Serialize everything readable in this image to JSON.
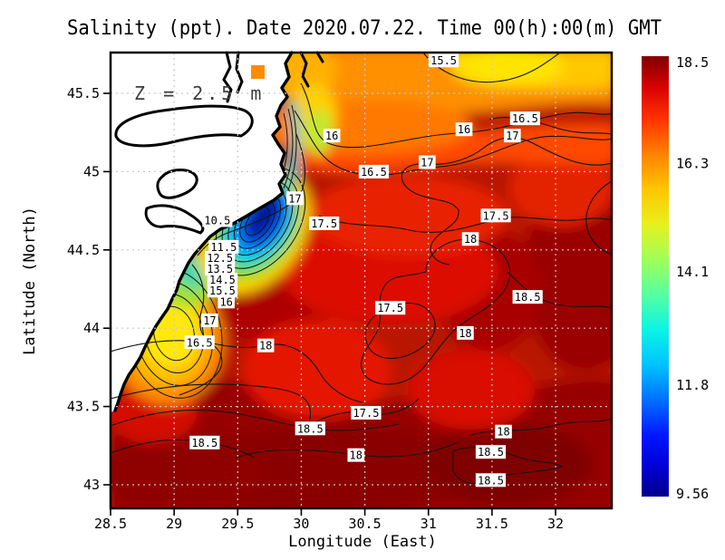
{
  "title": "Salinity (ppt). Date 2020.07.22. Time 00(h):00(m) GMT",
  "annotation": "Z = 2.5 m",
  "axes": {
    "x": {
      "label": "Longitude (East)",
      "ticks": [
        {
          "v": 28.5,
          "label": "28.5"
        },
        {
          "v": 29,
          "label": "29"
        },
        {
          "v": 29.5,
          "label": "29.5"
        },
        {
          "v": 30,
          "label": "30"
        },
        {
          "v": 30.5,
          "label": "30.5"
        },
        {
          "v": 31,
          "label": "31"
        },
        {
          "v": 31.5,
          "label": "31.5"
        },
        {
          "v": 32,
          "label": "32"
        }
      ]
    },
    "y": {
      "label": "Latitude (North)",
      "ticks": [
        {
          "v": 45.5,
          "label": "45.5"
        },
        {
          "v": 45,
          "label": "45"
        },
        {
          "v": 44.5,
          "label": "44.5"
        },
        {
          "v": 44,
          "label": "44"
        },
        {
          "v": 43.5,
          "label": "43.5"
        },
        {
          "v": 43,
          "label": "43"
        }
      ]
    }
  },
  "colorbar": {
    "min": 9.56,
    "max": 18.5,
    "ticks": [
      {
        "v": 18.5,
        "label": "18.5"
      },
      {
        "v": 16.3,
        "label": "16.3"
      },
      {
        "v": 14.1,
        "label": "14.1"
      },
      {
        "v": 11.8,
        "label": "11.8"
      },
      {
        "v": 9.56,
        "label": "9.56"
      }
    ]
  },
  "chart_data": {
    "type": "heatmap",
    "subtype": "filled-contour-map",
    "variable": "Salinity (ppt)",
    "date": "2020.07.22",
    "time": "00(h):00(m) GMT",
    "depth_annotation": "Z = 2.5 m",
    "xlabel": "Longitude (East)",
    "ylabel": "Latitude (North)",
    "lon_range": [
      28.5,
      32.44
    ],
    "lat_range": [
      42.85,
      45.76
    ],
    "value_range": [
      9.56,
      18.5
    ],
    "colormap": "jet",
    "grid": true,
    "legend_position": "right-colorbar",
    "contour_labels": [
      {
        "v": "15.5",
        "lon": 31.12,
        "lat": 45.71
      },
      {
        "v": "16.5",
        "lon": 31.76,
        "lat": 45.34
      },
      {
        "v": "16",
        "lon": 31.28,
        "lat": 45.27
      },
      {
        "v": "17",
        "lon": 31.66,
        "lat": 45.23
      },
      {
        "v": "16",
        "lon": 30.24,
        "lat": 45.23
      },
      {
        "v": "17",
        "lon": 30.99,
        "lat": 45.06
      },
      {
        "v": "16.5",
        "lon": 30.57,
        "lat": 45.0
      },
      {
        "v": "17",
        "lon": 29.95,
        "lat": 44.83
      },
      {
        "v": "17.5",
        "lon": 30.18,
        "lat": 44.67
      },
      {
        "v": "10.5",
        "lon": 29.34,
        "lat": 44.69
      },
      {
        "v": "17.5",
        "lon": 31.53,
        "lat": 44.72
      },
      {
        "v": "18",
        "lon": 31.33,
        "lat": 44.57
      },
      {
        "v": "11.5",
        "lon": 29.39,
        "lat": 44.52
      },
      {
        "v": "12.5",
        "lon": 29.36,
        "lat": 44.45
      },
      {
        "v": "13.5",
        "lon": 29.36,
        "lat": 44.38
      },
      {
        "v": "14.5",
        "lon": 29.38,
        "lat": 44.31
      },
      {
        "v": "15.5",
        "lon": 29.38,
        "lat": 44.24
      },
      {
        "v": "16",
        "lon": 29.41,
        "lat": 44.17
      },
      {
        "v": "18.5",
        "lon": 31.78,
        "lat": 44.2
      },
      {
        "v": "17",
        "lon": 29.28,
        "lat": 44.05
      },
      {
        "v": "17.5",
        "lon": 30.7,
        "lat": 44.13
      },
      {
        "v": "16.5",
        "lon": 29.2,
        "lat": 43.91
      },
      {
        "v": "18",
        "lon": 29.72,
        "lat": 43.89
      },
      {
        "v": "18",
        "lon": 31.29,
        "lat": 43.97
      },
      {
        "v": "18.5",
        "lon": 30.07,
        "lat": 43.36
      },
      {
        "v": "17.5",
        "lon": 30.51,
        "lat": 43.46
      },
      {
        "v": "18",
        "lon": 30.43,
        "lat": 43.19
      },
      {
        "v": "18.5",
        "lon": 29.24,
        "lat": 43.27
      },
      {
        "v": "18",
        "lon": 31.59,
        "lat": 43.34
      },
      {
        "v": "18.5",
        "lon": 31.49,
        "lat": 43.21
      },
      {
        "v": "18.5",
        "lon": 31.49,
        "lat": 43.03
      }
    ],
    "features": [
      "Low-salinity river plume (dark blue, ~9.6-11 ppt) along the NW coast near 29.8E 44.8N",
      "Secondary fresher coastal patch (yellow-green, ~14-16 ppt) near 29.1E 44.1N",
      "Open-sea salinity increases southeastward to >18.5 ppt (dark red)",
      "Land (white) with coastline and lagoons in the NW corner of the map"
    ],
    "colors": {
      "land": "#ffffff",
      "coastline": "#000000",
      "grid": "#c8c8c8",
      "contour": "#141414",
      "cbar_top": "#800000",
      "cbar_bottom": "#000089"
    }
  }
}
